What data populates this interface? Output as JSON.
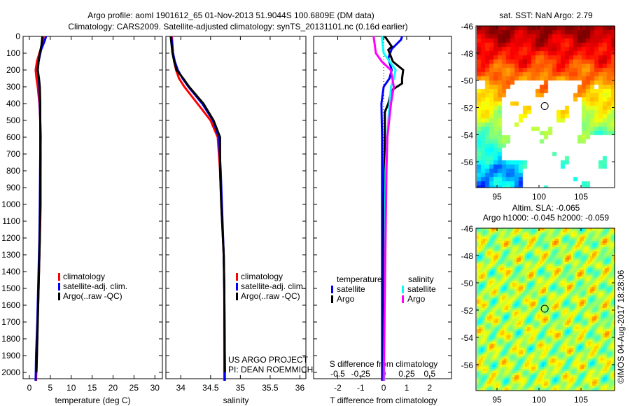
{
  "titles": {
    "line1": "Argo profile: aoml 1901612_65 01-Nov-2013 51.9044S 100.6809E (DM data)",
    "line2": "Climatology: CARS2009. Satellite-adjusted climatology: synTS_20131101.nc (0.16d earlier)"
  },
  "credits": {
    "project": "US ARGO PROJECT",
    "pi": "PI: DEAN ROEMMICH",
    "imos": "©IMOS 04-Aug-2017 18:28:06"
  },
  "colors": {
    "climatology": "#ff0000",
    "satellite": "#0000ff",
    "argo": "#000000",
    "sal_satellite": "#00ffff",
    "sal_argo": "#ff00ff"
  },
  "chart_data": [
    {
      "type": "line",
      "name": "temperature-profile",
      "xlabel": "temperature (deg C)",
      "ylabel": "",
      "xlim": [
        -1.5,
        31.8
      ],
      "ylim": [
        2050,
        0
      ],
      "xticks": [
        0,
        5,
        10,
        15,
        20,
        25,
        30
      ],
      "yticks": [
        0,
        100,
        200,
        300,
        400,
        500,
        600,
        700,
        800,
        900,
        1000,
        1100,
        1200,
        1300,
        1400,
        1500,
        1600,
        1700,
        1800,
        1900,
        2000
      ],
      "legend": [
        "climatology",
        "satellite-adj. clim.",
        "Argo(..raw -QC)"
      ],
      "series": [
        {
          "name": "climatology",
          "color": "#ff0000",
          "depth": [
            0,
            50,
            100,
            150,
            200,
            250,
            300,
            400,
            500,
            700,
            1000,
            1200,
            1500,
            1700,
            1900,
            2050
          ],
          "values": [
            3.4,
            3.1,
            2.4,
            1.8,
            1.5,
            1.7,
            2.0,
            2.4,
            2.6,
            2.7,
            2.7,
            2.5,
            2.2,
            2.0,
            1.8,
            1.6
          ]
        },
        {
          "name": "satellite-adj. clim.",
          "color": "#0000ff",
          "depth": [
            0,
            30,
            80,
            150,
            200,
            250,
            300,
            400,
            500,
            700,
            1000,
            1200,
            1500,
            1700,
            1900,
            2050
          ],
          "values": [
            4.0,
            3.6,
            2.8,
            2.2,
            2.0,
            2.2,
            2.4,
            2.5,
            2.6,
            2.6,
            2.5,
            2.4,
            2.1,
            1.9,
            1.6,
            1.5
          ]
        },
        {
          "name": "Argo(..raw -QC)",
          "color": "#000000",
          "depth": [
            0,
            50,
            100,
            150,
            200,
            250,
            300,
            400,
            500,
            600,
            800,
            1000,
            1200,
            1400,
            1600,
            1800,
            2000
          ],
          "values": [
            3.1,
            2.9,
            2.5,
            2.2,
            2.0,
            2.3,
            2.5,
            2.6,
            2.6,
            2.7,
            2.6,
            2.6,
            2.5,
            2.3,
            2.1,
            1.9,
            1.7
          ]
        }
      ]
    },
    {
      "type": "line",
      "name": "salinity-profile",
      "xlabel": "salinity",
      "xlim": [
        33.75,
        36.1
      ],
      "ylim": [
        2050,
        0
      ],
      "xticks": [
        34,
        34.5,
        35,
        35.5,
        36
      ],
      "legend": [
        "climatology",
        "satellite-adj. clim.",
        "Argo(..raw -QC)"
      ],
      "series": [
        {
          "name": "climatology",
          "color": "#ff0000",
          "depth": [
            0,
            100,
            150,
            200,
            250,
            300,
            400,
            500,
            600,
            800,
            1000,
            1300,
            1500,
            2050
          ],
          "values": [
            33.85,
            33.87,
            33.89,
            33.92,
            33.97,
            34.06,
            34.28,
            34.5,
            34.62,
            34.66,
            34.68,
            34.72,
            34.73,
            34.73
          ]
        },
        {
          "name": "satellite-adj. clim.",
          "color": "#0000ff",
          "depth": [
            0,
            100,
            150,
            200,
            250,
            300,
            400,
            500,
            600,
            800,
            1000,
            1300,
            1500,
            2050
          ],
          "values": [
            33.84,
            33.87,
            33.9,
            33.95,
            34.03,
            34.13,
            34.36,
            34.54,
            34.64,
            34.67,
            34.69,
            34.72,
            34.73,
            34.74
          ]
        },
        {
          "name": "Argo(..raw -QC)",
          "color": "#000000",
          "depth": [
            0,
            100,
            150,
            200,
            250,
            300,
            400,
            500,
            600,
            800,
            1000,
            1300,
            1500,
            2000
          ],
          "values": [
            33.83,
            33.86,
            33.89,
            33.93,
            34.04,
            34.14,
            34.38,
            34.55,
            34.66,
            34.66,
            34.68,
            34.72,
            34.73,
            34.74
          ]
        }
      ]
    },
    {
      "type": "line",
      "name": "difference-profile",
      "xlabel": "T difference from climatology",
      "x2label": "S difference from climatology",
      "xlim": [
        -3.05,
        2.95
      ],
      "ylim": [
        2050,
        0
      ],
      "xticks": [
        -2,
        -1,
        0,
        1,
        2
      ],
      "x2ticks": [
        -0.5,
        -0.25,
        0,
        0.25,
        0.5
      ],
      "legend_titles": [
        "temperature",
        "salinity"
      ],
      "legend": [
        "satellite",
        "Argo",
        "satellite",
        "Argo"
      ],
      "series": [
        {
          "name": "T satellite",
          "color": "#0000ff",
          "unit": "T",
          "depth": [
            0,
            20,
            75,
            130,
            200,
            250,
            300,
            400,
            600,
            1000,
            2050
          ],
          "values": [
            0.8,
            0.75,
            0.35,
            0.2,
            0.35,
            0.25,
            0.0,
            -0.1,
            -0.07,
            -0.07,
            -0.07
          ]
        },
        {
          "name": "T Argo",
          "color": "#000000",
          "unit": "T",
          "depth": [
            0,
            60,
            80,
            150,
            200,
            250,
            280,
            320,
            400,
            450,
            600,
            1000,
            2050
          ],
          "values": [
            0.05,
            0.35,
            0.2,
            0.4,
            0.85,
            0.8,
            0.8,
            0.35,
            0.2,
            0.05,
            0.05,
            0.0,
            0.0
          ]
        },
        {
          "name": "S satellite",
          "color": "#00ffff",
          "unit": "S",
          "depth": [
            0,
            100,
            200,
            250,
            300,
            500,
            800,
            2050
          ],
          "values": [
            -0.02,
            0.0,
            0.13,
            0.11,
            0.08,
            0.05,
            0.02,
            0.005
          ]
        },
        {
          "name": "S Argo",
          "color": "#ff00ff",
          "unit": "S",
          "depth": [
            0,
            100,
            150,
            200,
            300,
            400,
            600,
            800,
            2050
          ],
          "values": [
            -0.11,
            -0.085,
            -0.02,
            0.077,
            0.11,
            0.08,
            0.04,
            0.03,
            0.0
          ]
        }
      ]
    },
    {
      "type": "heatmap",
      "name": "sst-map",
      "title": "sat. SST: NaN Argo: 2.79",
      "xticks": [
        95,
        100,
        105
      ],
      "yticks": [
        -46,
        -48,
        -50,
        -52,
        -54,
        -56
      ],
      "xlim": [
        92.5,
        109
      ],
      "ylim": [
        -57.9,
        -46
      ],
      "argo_position": [
        100.68,
        -51.9
      ]
    },
    {
      "type": "heatmap",
      "name": "sla-map",
      "title": "Altim. SLA: -0.065",
      "subtitle": "Argo h1000: -0.045 h2000: -0.059",
      "xticks": [
        95,
        100,
        105
      ],
      "yticks": [
        -46,
        -48,
        -50,
        -52,
        -54,
        -56
      ],
      "xlim": [
        92.5,
        109
      ],
      "ylim": [
        -57.9,
        -46
      ],
      "argo_position": [
        100.68,
        -51.9
      ]
    }
  ]
}
